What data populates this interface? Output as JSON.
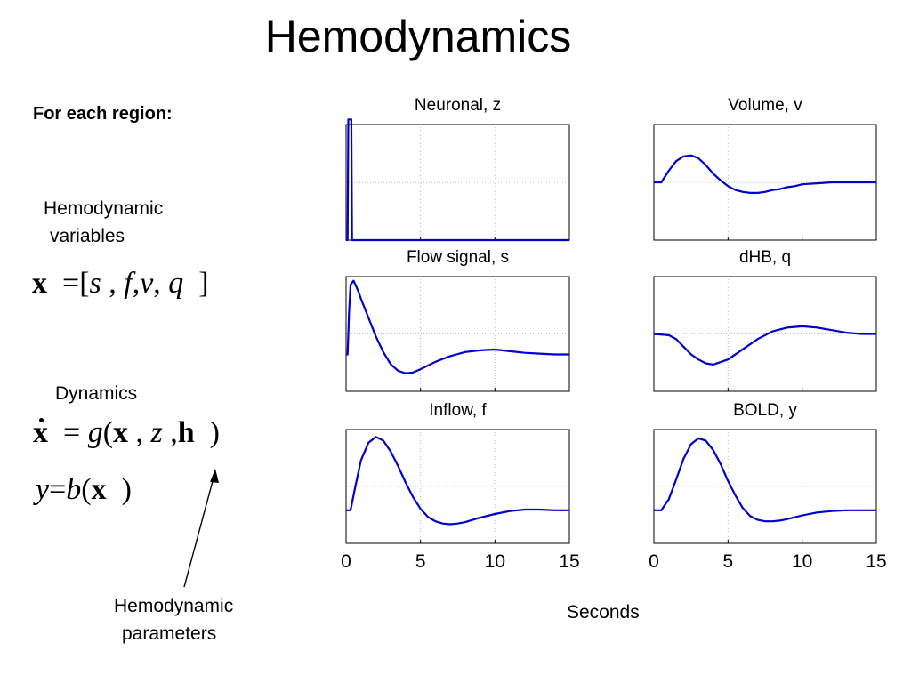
{
  "slide": {
    "title": "Hemodynamics",
    "for_each": "For each region:",
    "hemo_var_line1": "Hemodynamic",
    "hemo_var_line2": "variables",
    "state_eq": {
      "lhs": "x",
      "eq": "=",
      "open": "[",
      "s": "s",
      "c1": ",",
      "f": "f",
      "c2": ",",
      "v": "v",
      "c3": ",",
      "q": "q",
      "close": "]"
    },
    "dynamics_label": "Dynamics",
    "dyn_eq": {
      "lhs": "x",
      "eq": "=",
      "g": "g",
      "open": "(",
      "x": "x",
      "c1": ",",
      "z": "z",
      "c2": ",",
      "h": "h",
      "close": ")"
    },
    "out_eq": {
      "y": "y",
      "eq": "=",
      "b": "b",
      "open": "(",
      "x": "x",
      "close": ")"
    },
    "hemo_par_line1": "Hemodynamic",
    "hemo_par_line2": "parameters",
    "xlabel": "Seconds",
    "line_color": "#0000cc"
  },
  "chart_data": [
    {
      "type": "line",
      "title": "Neuronal, z",
      "xlim": [
        0,
        15
      ],
      "grid": true,
      "x": [
        0,
        0.1,
        0.15,
        0.2,
        0.3,
        0.35,
        0.4,
        15
      ],
      "y": [
        0,
        0,
        1.2,
        1.2,
        1.2,
        1.2,
        0,
        0
      ]
    },
    {
      "type": "line",
      "title": "Volume, v",
      "xlim": [
        0,
        15
      ],
      "grid": true,
      "x": [
        0,
        0.5,
        1,
        1.5,
        2,
        2.5,
        3,
        3.5,
        4,
        4.5,
        5,
        5.5,
        6,
        6.5,
        7,
        7.5,
        8,
        8.5,
        9,
        9.5,
        10,
        11,
        12,
        13,
        14,
        15
      ],
      "y": [
        0,
        0,
        0.12,
        0.22,
        0.27,
        0.28,
        0.25,
        0.18,
        0.09,
        0.02,
        -0.04,
        -0.08,
        -0.1,
        -0.11,
        -0.11,
        -0.1,
        -0.08,
        -0.07,
        -0.05,
        -0.04,
        -0.02,
        -0.01,
        0,
        0,
        0,
        0
      ]
    },
    {
      "type": "line",
      "title": "Flow signal, s",
      "xlim": [
        0,
        15
      ],
      "grid": true,
      "x": [
        0,
        0.1,
        0.2,
        0.3,
        0.5,
        0.8,
        1,
        1.5,
        2,
        2.5,
        3,
        3.5,
        4,
        4.5,
        5,
        6,
        7,
        8,
        9,
        10,
        11,
        12,
        13,
        14,
        15
      ],
      "y": [
        0,
        0,
        0.5,
        0.85,
        0.9,
        0.78,
        0.68,
        0.45,
        0.22,
        0.03,
        -0.12,
        -0.2,
        -0.23,
        -0.22,
        -0.18,
        -0.09,
        -0.02,
        0.03,
        0.05,
        0.06,
        0.04,
        0.02,
        0.01,
        0,
        0
      ]
    },
    {
      "type": "line",
      "title": "dHB, q",
      "xlim": [
        0,
        15
      ],
      "grid": true,
      "x": [
        0,
        1,
        1.5,
        2,
        2.5,
        3,
        3.5,
        4,
        5,
        6,
        7,
        8,
        9,
        10,
        11,
        12,
        13,
        14,
        15
      ],
      "y": [
        0,
        -0.01,
        -0.04,
        -0.1,
        -0.16,
        -0.2,
        -0.23,
        -0.24,
        -0.2,
        -0.12,
        -0.04,
        0.02,
        0.05,
        0.06,
        0.05,
        0.03,
        0.01,
        0,
        0
      ]
    },
    {
      "type": "line",
      "title": "Inflow, f",
      "xlim": [
        0,
        15
      ],
      "grid": true,
      "x": [
        0,
        0.3,
        0.6,
        1,
        1.5,
        2,
        2.5,
        3,
        3.5,
        4,
        4.5,
        5,
        5.5,
        6,
        6.5,
        7,
        7.5,
        8,
        9,
        10,
        11,
        12,
        13,
        14,
        15
      ],
      "y": [
        0,
        0,
        0.3,
        0.68,
        0.92,
        1,
        0.95,
        0.8,
        0.6,
        0.38,
        0.18,
        0.02,
        -0.09,
        -0.15,
        -0.18,
        -0.19,
        -0.18,
        -0.16,
        -0.1,
        -0.05,
        -0.01,
        0.01,
        0.01,
        0,
        0
      ]
    },
    {
      "type": "line",
      "title": "BOLD, y",
      "xlim": [
        0,
        15
      ],
      "grid": true,
      "x": [
        0,
        0.5,
        1,
        1.5,
        2,
        2.5,
        3,
        3.5,
        4,
        4.5,
        5,
        5.5,
        6,
        6.5,
        7,
        7.5,
        8,
        8.5,
        9,
        10,
        11,
        12,
        13,
        14,
        15
      ],
      "y": [
        0,
        0,
        0.15,
        0.42,
        0.7,
        0.9,
        0.98,
        0.95,
        0.82,
        0.63,
        0.4,
        0.2,
        0.03,
        -0.08,
        -0.13,
        -0.15,
        -0.15,
        -0.14,
        -0.12,
        -0.07,
        -0.03,
        -0.01,
        0,
        0,
        0
      ]
    }
  ],
  "ticks": [
    "0",
    "5",
    "10",
    "15"
  ]
}
